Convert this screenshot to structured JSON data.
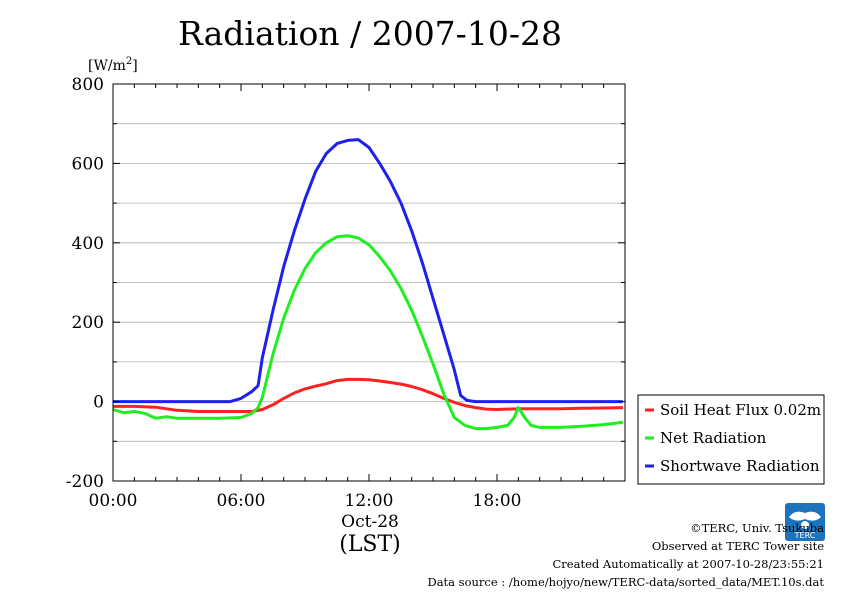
{
  "chart_data": {
    "type": "line",
    "title": "Radiation / 2007-10-28",
    "ylabel": "[W/m2]",
    "ylabel_unit": "[W/m",
    "ylabel_sup": "2",
    "ylabel_close": "]",
    "xlabel": "(LST)",
    "xdate": "Oct-28",
    "ylim": [
      -200,
      800
    ],
    "xlim_hours": [
      0,
      24
    ],
    "yticks": [
      "-200",
      "0",
      "200",
      "400",
      "600",
      "800"
    ],
    "ytick_values": [
      -200,
      0,
      200,
      400,
      600,
      800
    ],
    "xticks": [
      "00:00",
      "06:00",
      "12:00",
      "18:00"
    ],
    "xtick_values": [
      0,
      6,
      12,
      18
    ],
    "grid": true,
    "legend_position": "right",
    "series": [
      {
        "name": "Soil Heat Flux 0.02m",
        "color": "#ff2020",
        "x": [
          0,
          1,
          2,
          3,
          4,
          5,
          6,
          6.5,
          7,
          7.5,
          8,
          8.5,
          9,
          9.5,
          10,
          10.5,
          11,
          11.5,
          12,
          12.5,
          13,
          13.5,
          14,
          14.5,
          15,
          15.5,
          16,
          16.5,
          17,
          17.5,
          18,
          19,
          20,
          21,
          22,
          23,
          23.9
        ],
        "y": [
          -12,
          -12,
          -14,
          -22,
          -25,
          -25,
          -25,
          -25,
          -20,
          -8,
          8,
          22,
          32,
          39,
          45,
          53,
          56,
          56,
          55,
          52,
          48,
          44,
          38,
          30,
          20,
          8,
          -2,
          -10,
          -15,
          -19,
          -20,
          -18,
          -18,
          -18,
          -17,
          -16,
          -15
        ]
      },
      {
        "name": "Net Radiation",
        "color": "#20ee20",
        "x": [
          0,
          0.5,
          1,
          1.5,
          2,
          2.5,
          3,
          4,
          5,
          6,
          6.5,
          6.8,
          7,
          7.5,
          8,
          8.5,
          9,
          9.5,
          10,
          10.5,
          11,
          11.5,
          12,
          12.5,
          13,
          13.5,
          14,
          14.5,
          15,
          15.5,
          16,
          16.5,
          17,
          17.5,
          18,
          18.5,
          18.8,
          19,
          19.3,
          19.6,
          20,
          21,
          22,
          23,
          23.9
        ],
        "y": [
          -20,
          -28,
          -25,
          -30,
          -42,
          -38,
          -42,
          -42,
          -42,
          -40,
          -30,
          -15,
          10,
          120,
          210,
          280,
          335,
          375,
          400,
          415,
          418,
          412,
          395,
          365,
          330,
          285,
          230,
          165,
          95,
          20,
          -40,
          -60,
          -68,
          -68,
          -65,
          -60,
          -40,
          -15,
          -40,
          -60,
          -65,
          -65,
          -62,
          -58,
          -52
        ]
      },
      {
        "name": "Shortwave Radiation",
        "color": "#2020ee",
        "x": [
          0,
          2,
          4,
          5.5,
          6,
          6.5,
          6.8,
          7,
          7.5,
          8,
          8.5,
          9,
          9.5,
          10,
          10.5,
          11,
          11.5,
          12,
          12.5,
          13,
          13.5,
          14,
          14.5,
          15,
          15.5,
          16,
          16.3,
          16.6,
          17,
          18,
          20,
          22,
          23.9
        ],
        "y": [
          0,
          0,
          0,
          0,
          8,
          25,
          40,
          110,
          230,
          340,
          430,
          510,
          580,
          625,
          650,
          658,
          660,
          640,
          600,
          555,
          500,
          430,
          350,
          260,
          170,
          80,
          15,
          3,
          0,
          0,
          0,
          0,
          0
        ]
      }
    ]
  },
  "credits": {
    "copyright": "©TERC, Univ. Tsukuba",
    "site": "Observed at TERC Tower site",
    "created": "Created Automatically at 2007-10-28/23:55:21",
    "source": "Data source : /home/hojyo/new/TERC-data/sorted_data/MET.10s.dat"
  },
  "logo": {
    "text": "TERC",
    "color": "#1e73be"
  }
}
